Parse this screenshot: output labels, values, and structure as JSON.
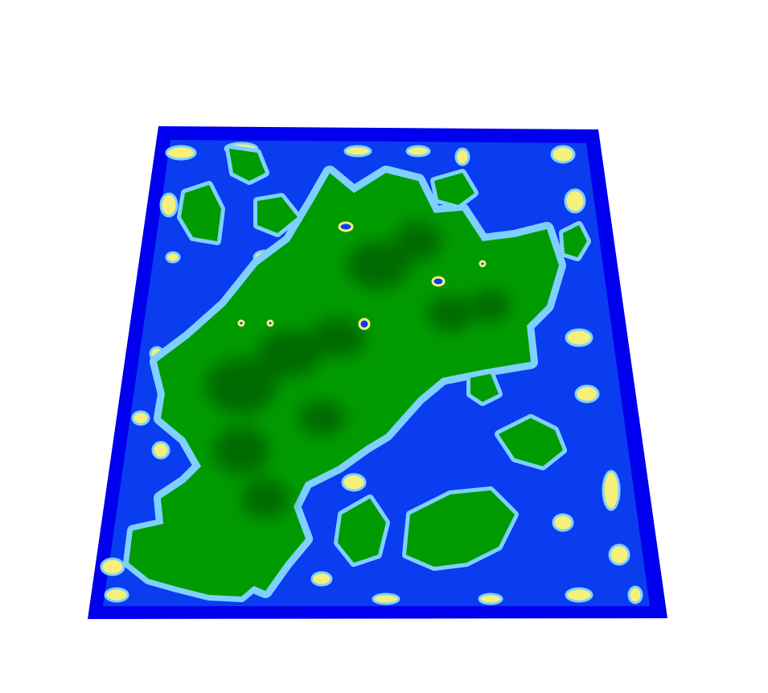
{
  "terrain": {
    "colors": {
      "background": "#ffffff",
      "deep_water": "#0000ee",
      "water": "#0a3cf0",
      "shallow": "#7fd0ff",
      "sand": "#f5f07a",
      "grass": "#009b00",
      "forest_shade": "#006a00"
    }
  }
}
